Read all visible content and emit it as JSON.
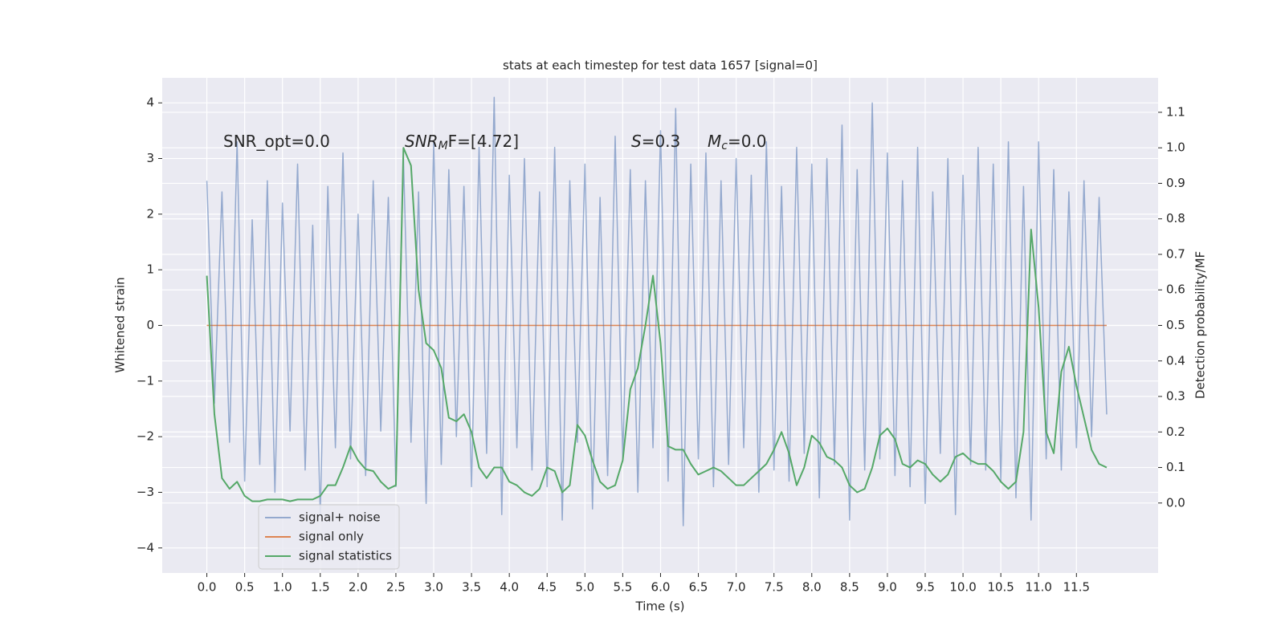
{
  "chart_data": {
    "type": "line",
    "title": "stats at each timestep for test data 1657 [signal=0]",
    "xlabel": "Time (s)",
    "ylabel": "Whitened strain",
    "y2label": "Detection probability/MF",
    "x": [
      0,
      0.1,
      0.2,
      0.3,
      0.4,
      0.5,
      0.6,
      0.7,
      0.8,
      0.9,
      1.0,
      1.1,
      1.2,
      1.3,
      1.4,
      1.5,
      1.6,
      1.7,
      1.8,
      1.9,
      2.0,
      2.1,
      2.2,
      2.3,
      2.4,
      2.5,
      2.6,
      2.7,
      2.8,
      2.9,
      3.0,
      3.1,
      3.2,
      3.3,
      3.4,
      3.5,
      3.6,
      3.7,
      3.8,
      3.9,
      4.0,
      4.1,
      4.2,
      4.3,
      4.4,
      4.5,
      4.6,
      4.7,
      4.8,
      4.9,
      5.0,
      5.1,
      5.2,
      5.3,
      5.4,
      5.5,
      5.6,
      5.7,
      5.8,
      5.9,
      6.0,
      6.1,
      6.2,
      6.3,
      6.4,
      6.5,
      6.6,
      6.7,
      6.8,
      6.9,
      7.0,
      7.1,
      7.2,
      7.3,
      7.4,
      7.5,
      7.6,
      7.7,
      7.8,
      7.9,
      8.0,
      8.1,
      8.2,
      8.3,
      8.4,
      8.5,
      8.6,
      8.7,
      8.8,
      8.9,
      9.0,
      9.1,
      9.2,
      9.3,
      9.4,
      9.5,
      9.6,
      9.7,
      9.8,
      9.9,
      10.0,
      10.1,
      10.2,
      10.3,
      10.4,
      10.5,
      10.6,
      10.7,
      10.8,
      10.9,
      11.0,
      11.1,
      11.2,
      11.3,
      11.4,
      11.5,
      11.6,
      11.7,
      11.8,
      11.9
    ],
    "series": [
      {
        "name": "signal only",
        "color": "#dd8452",
        "x": [
          0,
          11.9
        ],
        "values": [
          0,
          0
        ]
      },
      {
        "name": "signal+ noise",
        "color": "#4c72b0",
        "alpha": 0.55,
        "values": [
          2.6,
          -1.4,
          2.4,
          -2.1,
          3.3,
          -2.8,
          1.9,
          -2.5,
          2.6,
          -3.0,
          2.2,
          -1.9,
          2.9,
          -2.6,
          1.8,
          -3.4,
          2.5,
          -2.2,
          3.1,
          -2.4,
          2.0,
          -2.7,
          2.6,
          -1.9,
          2.3,
          -2.9,
          3.0,
          -2.1,
          2.4,
          -3.2,
          3.3,
          -2.5,
          2.8,
          -2.0,
          2.5,
          -2.9,
          3.2,
          -2.3,
          4.1,
          -3.4,
          2.7,
          -2.2,
          3.0,
          -2.6,
          2.4,
          -2.9,
          3.2,
          -3.5,
          2.6,
          -2.1,
          2.9,
          -3.3,
          2.3,
          -2.7,
          3.4,
          -2.4,
          2.8,
          -3.0,
          2.6,
          -2.2,
          3.5,
          -2.8,
          3.9,
          -3.6,
          2.9,
          -2.4,
          3.1,
          -2.9,
          2.6,
          -2.5,
          3.0,
          -2.2,
          2.7,
          -3.0,
          3.3,
          -2.6,
          2.5,
          -2.8,
          3.2,
          -2.3,
          2.9,
          -3.1,
          3.0,
          -2.5,
          3.6,
          -3.5,
          2.8,
          -2.6,
          4.0,
          -2.4,
          3.1,
          -2.7,
          2.6,
          -2.9,
          3.2,
          -3.2,
          2.4,
          -2.3,
          3.0,
          -3.4,
          2.7,
          -2.5,
          3.2,
          -2.6,
          2.9,
          -2.8,
          3.3,
          -3.1,
          2.5,
          -3.5,
          3.3,
          -2.4,
          2.8,
          -2.6,
          2.4,
          -2.2,
          2.6,
          -2.0,
          2.3,
          -1.6
        ]
      },
      {
        "name": "signal statistics",
        "color": "#55a868",
        "axis": "y2",
        "values": [
          0.64,
          0.25,
          0.07,
          0.04,
          0.06,
          0.02,
          0.005,
          0.005,
          0.01,
          0.01,
          0.01,
          0.005,
          0.01,
          0.01,
          0.01,
          0.02,
          0.05,
          0.05,
          0.1,
          0.16,
          0.12,
          0.095,
          0.09,
          0.06,
          0.04,
          0.05,
          1.0,
          0.95,
          0.6,
          0.45,
          0.43,
          0.38,
          0.24,
          0.23,
          0.25,
          0.2,
          0.1,
          0.07,
          0.1,
          0.1,
          0.06,
          0.05,
          0.03,
          0.02,
          0.04,
          0.1,
          0.09,
          0.03,
          0.05,
          0.22,
          0.19,
          0.12,
          0.06,
          0.04,
          0.05,
          0.12,
          0.32,
          0.38,
          0.5,
          0.64,
          0.45,
          0.16,
          0.15,
          0.15,
          0.11,
          0.08,
          0.09,
          0.1,
          0.09,
          0.07,
          0.05,
          0.05,
          0.07,
          0.09,
          0.11,
          0.15,
          0.2,
          0.14,
          0.05,
          0.1,
          0.19,
          0.17,
          0.13,
          0.12,
          0.1,
          0.05,
          0.03,
          0.04,
          0.1,
          0.19,
          0.21,
          0.18,
          0.11,
          0.1,
          0.12,
          0.11,
          0.08,
          0.06,
          0.08,
          0.13,
          0.14,
          0.12,
          0.11,
          0.11,
          0.09,
          0.06,
          0.04,
          0.06,
          0.2,
          0.77,
          0.55,
          0.2,
          0.14,
          0.37,
          0.44,
          0.33,
          0.24,
          0.15,
          0.11,
          0.1
        ]
      }
    ],
    "legend_order": [
      1,
      0,
      2
    ],
    "legend": "lower left",
    "annotations": [
      {
        "text": "SNR_opt=0.0"
      },
      {
        "math": "SNR",
        "sub": "M",
        "text": "F=[4.72]"
      },
      {
        "math": "S",
        "text": "=0.3"
      },
      {
        "math": "M",
        "sub": "c",
        "text": "=0.0"
      }
    ],
    "xlim": [
      -0.59,
      12.58
    ],
    "ylim": [
      -4.45,
      4.45
    ],
    "y2lim": [
      -0.197,
      1.197
    ],
    "xticks": [
      {
        "value": 0,
        "label": "0.0"
      },
      0.5,
      {
        "value": 1,
        "label": "1.0"
      },
      1.5,
      {
        "value": 2,
        "label": "2.0"
      },
      2.5,
      {
        "value": 3,
        "label": "3.0"
      },
      3.5,
      {
        "value": 4,
        "label": "4.0"
      },
      4.5,
      {
        "value": 5,
        "label": "5.0"
      },
      5.5,
      {
        "value": 6,
        "label": "6.0"
      },
      6.5,
      {
        "value": 7,
        "label": "7.0"
      },
      7.5,
      {
        "value": 8,
        "label": "8.0"
      },
      8.5,
      {
        "value": 9,
        "label": "9.0"
      },
      9.5,
      {
        "value": 10,
        "label": "10.0"
      },
      10.5,
      {
        "value": 11,
        "label": "11.0"
      },
      11.5
    ],
    "yticks": [
      {
        "value": -4,
        "label": "−4"
      },
      {
        "value": -3,
        "label": "−3"
      },
      {
        "value": -2,
        "label": "−2"
      },
      {
        "value": -1,
        "label": "−1"
      },
      0,
      1,
      2,
      3,
      4
    ],
    "y2ticks": [
      {
        "value": 0,
        "label": "0.0"
      },
      0.1,
      0.2,
      0.3,
      0.4,
      0.5,
      0.6,
      0.7,
      0.8,
      0.9,
      {
        "value": 1,
        "label": "1.0"
      },
      1.1
    ],
    "grid": true
  }
}
